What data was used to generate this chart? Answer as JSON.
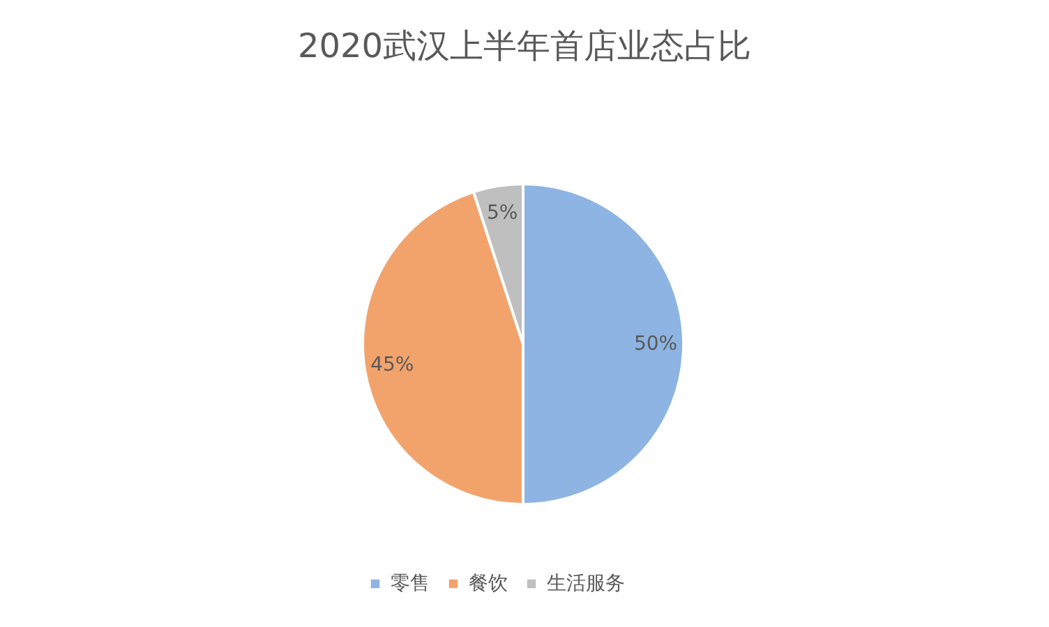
{
  "chart_data": {
    "type": "pie",
    "title": "2020武汉上半年首店业态占比",
    "categories": [
      "零售",
      "餐饮",
      "生活服务"
    ],
    "values": [
      50,
      45,
      5
    ],
    "colors": [
      "#8db4e2",
      "#f2a36c",
      "#bfbfbf"
    ],
    "value_labels": [
      "50%",
      "45%",
      "5%"
    ],
    "legend": "bottom"
  }
}
